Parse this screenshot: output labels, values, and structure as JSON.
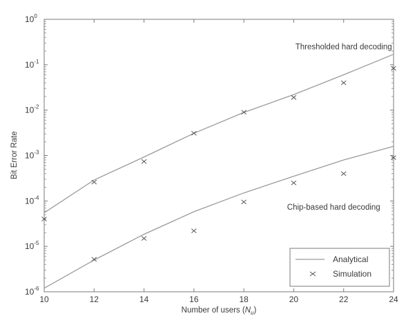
{
  "chart_data": {
    "type": "line",
    "title": "",
    "xlabel_main": "Number of users (",
    "xlabel_var": "N",
    "xlabel_sub": "u",
    "xlabel_close": ")",
    "ylabel": "Bit Error Rate",
    "xlim": [
      10,
      24
    ],
    "ylim": [
      1e-06,
      1
    ],
    "yscale": "log",
    "x_ticks": [
      "10",
      "12",
      "14",
      "16",
      "18",
      "20",
      "22",
      "24"
    ],
    "y_ticks": [
      {
        "base": "10",
        "exp": "-6",
        "value": 1e-06
      },
      {
        "base": "10",
        "exp": "-5",
        "value": 1e-05
      },
      {
        "base": "10",
        "exp": "-4",
        "value": 0.0001
      },
      {
        "base": "10",
        "exp": "-3",
        "value": 0.001
      },
      {
        "base": "10",
        "exp": "-2",
        "value": 0.01
      },
      {
        "base": "10",
        "exp": "-1",
        "value": 0.1
      },
      {
        "base": "10",
        "exp": "0",
        "value": 1
      }
    ],
    "grid": false,
    "legend_position": "bottom-right",
    "series": [
      {
        "name": "Analytical",
        "style": "line",
        "color": "#9a9a9a",
        "x": [
          10,
          12,
          14,
          16,
          18,
          20,
          22,
          24
        ],
        "y": [
          5.5e-05,
          0.00029,
          0.00093,
          0.0031,
          0.0089,
          0.022,
          0.06,
          0.17
        ]
      },
      {
        "name": "Analytical",
        "style": "line",
        "color": "#9a9a9a",
        "x": [
          10,
          12,
          14,
          16,
          18,
          20,
          22,
          24
        ],
        "y": [
          1.2e-06,
          5e-06,
          1.85e-05,
          5.8e-05,
          0.00015,
          0.00035,
          0.0008,
          0.0016
        ]
      },
      {
        "name": "Simulation",
        "style": "marker",
        "color": "#555555",
        "x": [
          12,
          14,
          16,
          18,
          20,
          22,
          24
        ],
        "y": [
          0.00026,
          0.00074,
          0.0031,
          0.009,
          0.019,
          0.04,
          0.083
        ]
      },
      {
        "name": "Simulation",
        "style": "marker",
        "color": "#555555",
        "x": [
          10,
          12,
          14,
          16,
          18,
          20,
          22,
          24
        ],
        "y": [
          4e-05,
          5.2e-06,
          1.5e-05,
          2.2e-05,
          9.5e-05,
          0.00025,
          0.0004,
          0.0009
        ]
      }
    ],
    "annotations": [
      {
        "text": "Thresholded hard decoding",
        "x": 22,
        "y": 0.22
      },
      {
        "text": "Chip-based hard decoding",
        "x": 21.6,
        "y": 6.4e-05
      }
    ],
    "legend": {
      "entries": [
        {
          "label": "Analytical",
          "kind": "line"
        },
        {
          "label": "Simulation",
          "kind": "marker"
        }
      ]
    }
  }
}
